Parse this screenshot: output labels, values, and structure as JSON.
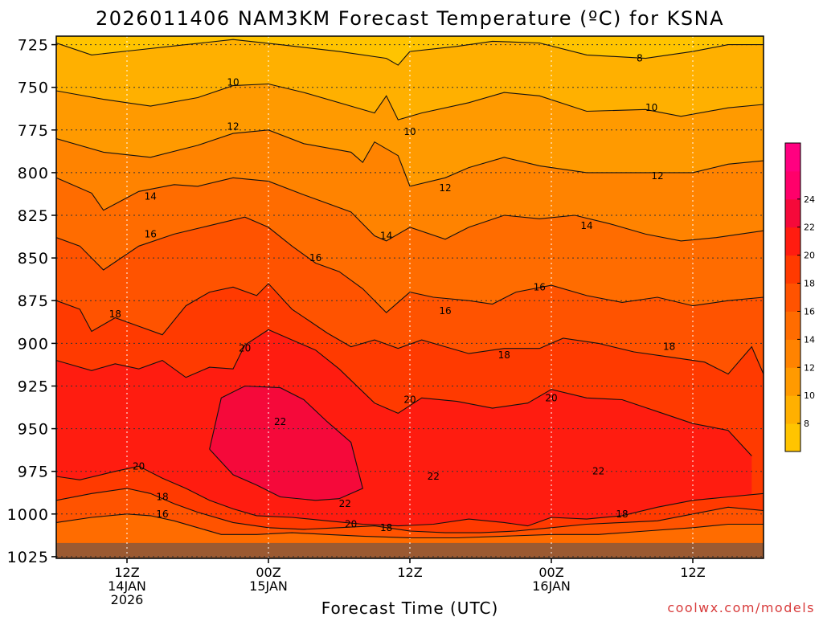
{
  "chart_data": {
    "type": "heatmap",
    "title": "2026011406 NAM3KM Forecast Temperature (ºC) for KSNA",
    "xlabel": "Forecast Time (UTC)",
    "ylabel": "",
    "watermark": "coolwx.com/models",
    "x_range_hours": [
      0,
      60
    ],
    "x_ticks": [
      {
        "hour": 6,
        "lines": [
          "12Z",
          "14JAN",
          "2026"
        ]
      },
      {
        "hour": 18,
        "lines": [
          "00Z",
          "15JAN"
        ]
      },
      {
        "hour": 30,
        "lines": [
          "12Z"
        ]
      },
      {
        "hour": 42,
        "lines": [
          "00Z",
          "16JAN"
        ]
      },
      {
        "hour": 54,
        "lines": [
          "12Z"
        ]
      }
    ],
    "y_range_hpa": [
      720,
      1026
    ],
    "y_ticks": [
      725,
      750,
      775,
      800,
      825,
      850,
      875,
      900,
      925,
      950,
      975,
      1000,
      1025
    ],
    "grid": true,
    "colorbar": {
      "levels": [
        6,
        8,
        10,
        12,
        14,
        16,
        18,
        20,
        22,
        24,
        26,
        28
      ],
      "labels": [
        8,
        10,
        12,
        14,
        16,
        18,
        20,
        22,
        24
      ],
      "colors": [
        "#ffc400",
        "#ffb000",
        "#ff9a00",
        "#ff8300",
        "#ff6c00",
        "#ff5300",
        "#ff3a00",
        "#ff1c10",
        "#f5093a",
        "#ff006a",
        "#ff0080"
      ]
    },
    "ground_color": "#9b5a32",
    "ground_level_hpa": 1017,
    "contours": [
      {
        "value": 8,
        "label": "8",
        "points": [
          [
            0,
            724
          ],
          [
            3,
            731
          ],
          [
            7,
            728
          ],
          [
            11,
            725
          ],
          [
            15,
            722
          ],
          [
            19,
            725
          ],
          [
            24,
            729
          ],
          [
            28,
            733
          ],
          [
            29,
            737
          ],
          [
            30,
            729
          ],
          [
            34,
            726
          ],
          [
            37,
            723
          ],
          [
            41,
            724
          ],
          [
            45,
            731
          ],
          [
            50,
            733
          ],
          [
            54,
            729
          ],
          [
            57,
            725
          ],
          [
            60,
            725
          ]
        ]
      },
      {
        "value": 10,
        "label": "10",
        "points": [
          [
            0,
            752
          ],
          [
            4,
            757
          ],
          [
            8,
            761
          ],
          [
            12,
            756
          ],
          [
            15,
            749
          ],
          [
            18,
            748
          ],
          [
            21,
            753
          ],
          [
            25,
            761
          ],
          [
            27,
            765
          ],
          [
            28,
            755
          ],
          [
            29,
            769
          ],
          [
            31,
            765
          ],
          [
            35,
            759
          ],
          [
            38,
            753
          ],
          [
            41,
            755
          ],
          [
            45,
            764
          ],
          [
            50,
            763
          ],
          [
            53,
            767
          ],
          [
            57,
            762
          ],
          [
            60,
            760
          ]
        ]
      },
      {
        "value": 12,
        "label": "12",
        "points": [
          [
            0,
            780
          ],
          [
            4,
            788
          ],
          [
            8,
            791
          ],
          [
            12,
            784
          ],
          [
            15,
            777
          ],
          [
            18,
            775
          ],
          [
            21,
            783
          ],
          [
            25,
            788
          ],
          [
            26,
            794
          ],
          [
            27,
            782
          ],
          [
            29,
            790
          ],
          [
            30,
            808
          ],
          [
            33,
            803
          ],
          [
            35,
            797
          ],
          [
            38,
            791
          ],
          [
            41,
            796
          ],
          [
            45,
            800
          ],
          [
            50,
            800
          ],
          [
            54,
            800
          ],
          [
            57,
            795
          ],
          [
            60,
            793
          ]
        ]
      },
      {
        "value": 14,
        "label": "14",
        "points": [
          [
            0,
            803
          ],
          [
            3,
            812
          ],
          [
            4,
            822
          ],
          [
            7,
            811
          ],
          [
            10,
            807
          ],
          [
            12,
            808
          ],
          [
            15,
            803
          ],
          [
            18,
            805
          ],
          [
            21,
            813
          ],
          [
            25,
            823
          ],
          [
            27,
            837
          ],
          [
            28,
            840
          ],
          [
            30,
            832
          ],
          [
            33,
            839
          ],
          [
            35,
            832
          ],
          [
            38,
            825
          ],
          [
            41,
            827
          ],
          [
            44,
            825
          ],
          [
            47,
            830
          ],
          [
            50,
            836
          ],
          [
            53,
            840
          ],
          [
            56,
            838
          ],
          [
            60,
            834
          ]
        ]
      },
      {
        "value": 16,
        "label": "16",
        "points": [
          [
            0,
            838
          ],
          [
            2,
            843
          ],
          [
            4,
            857
          ],
          [
            7,
            843
          ],
          [
            10,
            836
          ],
          [
            13,
            831
          ],
          [
            16,
            826
          ],
          [
            18,
            832
          ],
          [
            20,
            843
          ],
          [
            22,
            853
          ],
          [
            24,
            858
          ],
          [
            26,
            868
          ],
          [
            28,
            882
          ],
          [
            30,
            870
          ],
          [
            32,
            873
          ],
          [
            35,
            875
          ],
          [
            37,
            877
          ],
          [
            39,
            870
          ],
          [
            42,
            866
          ],
          [
            45,
            872
          ],
          [
            48,
            876
          ],
          [
            51,
            873
          ],
          [
            54,
            878
          ],
          [
            57,
            875
          ],
          [
            60,
            873
          ]
        ]
      },
      {
        "value": 18,
        "label": "18",
        "points": [
          [
            0,
            875
          ],
          [
            2,
            880
          ],
          [
            3,
            893
          ],
          [
            5,
            885
          ],
          [
            7,
            890
          ],
          [
            9,
            895
          ],
          [
            11,
            878
          ],
          [
            13,
            870
          ],
          [
            15,
            867
          ],
          [
            17,
            872
          ],
          [
            18,
            865
          ],
          [
            20,
            880
          ],
          [
            23,
            894
          ],
          [
            25,
            902
          ],
          [
            27,
            898
          ],
          [
            29,
            903
          ],
          [
            31,
            898
          ],
          [
            33,
            902
          ],
          [
            35,
            906
          ],
          [
            38,
            903
          ],
          [
            41,
            903
          ],
          [
            43,
            897
          ],
          [
            46,
            900
          ],
          [
            49,
            905
          ],
          [
            52,
            908
          ],
          [
            55,
            911
          ],
          [
            57,
            918
          ],
          [
            59,
            902
          ],
          [
            60,
            918
          ]
        ]
      },
      {
        "value": 20,
        "label": "20",
        "points": [
          [
            0,
            910
          ],
          [
            3,
            916
          ],
          [
            5,
            912
          ],
          [
            7,
            915
          ],
          [
            9,
            910
          ],
          [
            11,
            920
          ],
          [
            13,
            914
          ],
          [
            15,
            915
          ],
          [
            16,
            901
          ],
          [
            18,
            892
          ],
          [
            20,
            898
          ],
          [
            22,
            904
          ],
          [
            24,
            915
          ],
          [
            27,
            935
          ],
          [
            29,
            941
          ],
          [
            31,
            932
          ],
          [
            34,
            934
          ],
          [
            37,
            938
          ],
          [
            40,
            935
          ],
          [
            42,
            927
          ],
          [
            45,
            932
          ],
          [
            48,
            933
          ],
          [
            51,
            940
          ],
          [
            54,
            947
          ],
          [
            57,
            951
          ],
          [
            59,
            966
          ]
        ]
      },
      {
        "value": 22,
        "label": "22",
        "points": [
          [
            13,
            962
          ],
          [
            14,
            932
          ],
          [
            16,
            925
          ],
          [
            19,
            926
          ],
          [
            21,
            933
          ],
          [
            23,
            946
          ],
          [
            25,
            958
          ],
          [
            26,
            985
          ],
          [
            24,
            991
          ],
          [
            22,
            992
          ],
          [
            19,
            990
          ],
          [
            17,
            983
          ],
          [
            15,
            977
          ],
          [
            13,
            962
          ]
        ]
      },
      {
        "value": 20,
        "label": "20",
        "points": [
          [
            0,
            978
          ],
          [
            2,
            980
          ],
          [
            5,
            975
          ],
          [
            7,
            972
          ],
          [
            9,
            979
          ],
          [
            11,
            985
          ],
          [
            13,
            992
          ],
          [
            15,
            997
          ],
          [
            17,
            1001
          ],
          [
            20,
            1002
          ],
          [
            23,
            1004
          ],
          [
            26,
            1006
          ],
          [
            29,
            1007
          ],
          [
            32,
            1006
          ],
          [
            35,
            1003
          ],
          [
            38,
            1005
          ],
          [
            40,
            1007
          ],
          [
            42,
            1002
          ],
          [
            45,
            1003
          ],
          [
            48,
            1001
          ],
          [
            51,
            996
          ],
          [
            54,
            992
          ],
          [
            57,
            990
          ],
          [
            60,
            988
          ]
        ]
      },
      {
        "value": 18,
        "label": "18",
        "points": [
          [
            0,
            992
          ],
          [
            3,
            988
          ],
          [
            6,
            985
          ],
          [
            8,
            988
          ],
          [
            10,
            994
          ],
          [
            12,
            999
          ],
          [
            15,
            1005
          ],
          [
            18,
            1008
          ],
          [
            21,
            1009
          ],
          [
            24,
            1008
          ],
          [
            27,
            1007
          ],
          [
            30,
            1010
          ],
          [
            33,
            1011
          ],
          [
            36,
            1011
          ],
          [
            39,
            1010
          ],
          [
            42,
            1008
          ],
          [
            45,
            1006
          ],
          [
            48,
            1005
          ],
          [
            51,
            1004
          ],
          [
            54,
            1000
          ],
          [
            57,
            996
          ],
          [
            60,
            998
          ]
        ]
      },
      {
        "value": 16,
        "label": "16",
        "points": [
          [
            0,
            1005
          ],
          [
            3,
            1002
          ],
          [
            6,
            1000
          ],
          [
            8,
            1001
          ],
          [
            10,
            1004
          ],
          [
            12,
            1008
          ],
          [
            14,
            1012
          ],
          [
            17,
            1012
          ],
          [
            20,
            1011
          ],
          [
            23,
            1012
          ],
          [
            26,
            1013
          ],
          [
            30,
            1014
          ],
          [
            34,
            1014
          ],
          [
            38,
            1013
          ],
          [
            42,
            1012
          ],
          [
            46,
            1012
          ],
          [
            50,
            1010
          ],
          [
            54,
            1008
          ],
          [
            57,
            1006
          ],
          [
            60,
            1006
          ]
        ]
      }
    ],
    "contour_labels": [
      {
        "value": "8",
        "hour": 49.5,
        "hpa": 733
      },
      {
        "value": "10",
        "hour": 15,
        "hpa": 747
      },
      {
        "value": "10",
        "hour": 30,
        "hpa": 776
      },
      {
        "value": "10",
        "hour": 50.5,
        "hpa": 762
      },
      {
        "value": "12",
        "hour": 15,
        "hpa": 773
      },
      {
        "value": "12",
        "hour": 33,
        "hpa": 809
      },
      {
        "value": "12",
        "hour": 51,
        "hpa": 802
      },
      {
        "value": "14",
        "hour": 8,
        "hpa": 814
      },
      {
        "value": "14",
        "hour": 28,
        "hpa": 837
      },
      {
        "value": "14",
        "hour": 45,
        "hpa": 831
      },
      {
        "value": "16",
        "hour": 8,
        "hpa": 836
      },
      {
        "value": "16",
        "hour": 22,
        "hpa": 850
      },
      {
        "value": "16",
        "hour": 33,
        "hpa": 881
      },
      {
        "value": "16",
        "hour": 41,
        "hpa": 867
      },
      {
        "value": "18",
        "hour": 5,
        "hpa": 883
      },
      {
        "value": "18",
        "hour": 38,
        "hpa": 907
      },
      {
        "value": "18",
        "hour": 52,
        "hpa": 902
      },
      {
        "value": "18",
        "hour": 28,
        "hpa": 1008
      },
      {
        "value": "18",
        "hour": 48,
        "hpa": 1000
      },
      {
        "value": "18",
        "hour": 9,
        "hpa": 990
      },
      {
        "value": "20",
        "hour": 16,
        "hpa": 903
      },
      {
        "value": "20",
        "hour": 30,
        "hpa": 933
      },
      {
        "value": "20",
        "hour": 42,
        "hpa": 932
      },
      {
        "value": "20",
        "hour": 7,
        "hpa": 972
      },
      {
        "value": "20",
        "hour": 25,
        "hpa": 1006
      },
      {
        "value": "16",
        "hour": 9,
        "hpa": 1000
      },
      {
        "value": "22",
        "hour": 19,
        "hpa": 946
      },
      {
        "value": "22",
        "hour": 32,
        "hpa": 978
      },
      {
        "value": "22",
        "hour": 46,
        "hpa": 975
      },
      {
        "value": "22",
        "hour": 24.5,
        "hpa": 994
      }
    ]
  }
}
